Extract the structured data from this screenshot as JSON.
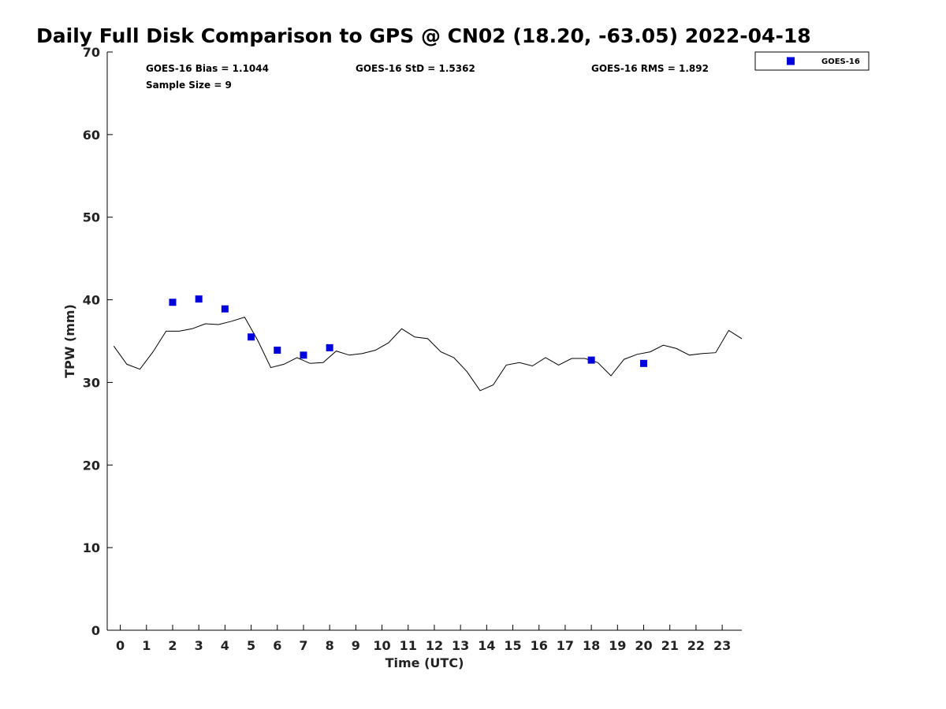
{
  "chart_data": {
    "type": "line",
    "title": "Daily Full Disk Comparison to GPS @ CN02 (18.20, -63.05) 2022-04-18",
    "xlabel": "Time (UTC)",
    "ylabel": "TPW (mm)",
    "xlim": [
      -0.5,
      23.75
    ],
    "ylim": [
      0,
      70
    ],
    "x_ticks": [
      "0",
      "1",
      "2",
      "3",
      "4",
      "5",
      "6",
      "7",
      "8",
      "9",
      "10",
      "11",
      "12",
      "13",
      "14",
      "15",
      "16",
      "17",
      "18",
      "19",
      "20",
      "21",
      "22",
      "23"
    ],
    "y_ticks": [
      "0",
      "10",
      "20",
      "30",
      "40",
      "50",
      "60",
      "70"
    ],
    "grid": false,
    "legend_position": "top-right, outside plot",
    "stats": {
      "bias": "GOES-16 Bias = 1.1044",
      "std": "GOES-16 StD = 1.5362",
      "rms": "GOES-16 RMS = 1.892",
      "sample_size": "Sample Size = 9"
    },
    "series": [
      {
        "style": "line",
        "color": "#000000",
        "x": [
          -0.25,
          0.25,
          0.75,
          1.25,
          1.75,
          2.25,
          2.75,
          3.25,
          3.75,
          4.25,
          4.75,
          5.25,
          5.75,
          6.25,
          6.75,
          7.25,
          7.75,
          8.25,
          8.75,
          9.25,
          9.75,
          10.25,
          10.75,
          11.25,
          11.75,
          12.25,
          12.75,
          13.25,
          13.75,
          14.25,
          14.75,
          15.25,
          15.75,
          16.25,
          16.75,
          17.25,
          17.75,
          18.25,
          18.75,
          19.25,
          19.75,
          20.25,
          20.75,
          21.25,
          21.75,
          22.25,
          22.75,
          23.25,
          23.75
        ],
        "y": [
          34.4,
          32.2,
          31.6,
          33.7,
          36.2,
          36.2,
          36.5,
          37.1,
          37.0,
          37.4,
          37.9,
          35.1,
          31.8,
          32.2,
          33.0,
          32.3,
          32.4,
          33.8,
          33.3,
          33.5,
          33.9,
          34.8,
          36.5,
          35.5,
          35.3,
          33.7,
          33.0,
          31.3,
          29.0,
          29.7,
          32.1,
          32.4,
          32.0,
          33.0,
          32.1,
          32.9,
          32.9,
          32.4,
          30.8,
          32.8,
          33.4,
          33.7,
          34.5,
          34.1,
          33.3,
          33.5,
          33.6,
          36.3,
          35.3
        ]
      },
      {
        "name": "GOES-16",
        "style": "scatter",
        "marker": "square",
        "color": "#0000dd",
        "x": [
          2,
          3,
          4,
          5,
          6,
          7,
          8,
          18,
          20
        ],
        "y": [
          39.7,
          40.1,
          38.9,
          35.5,
          33.9,
          33.3,
          34.2,
          32.7,
          32.3
        ]
      }
    ]
  }
}
